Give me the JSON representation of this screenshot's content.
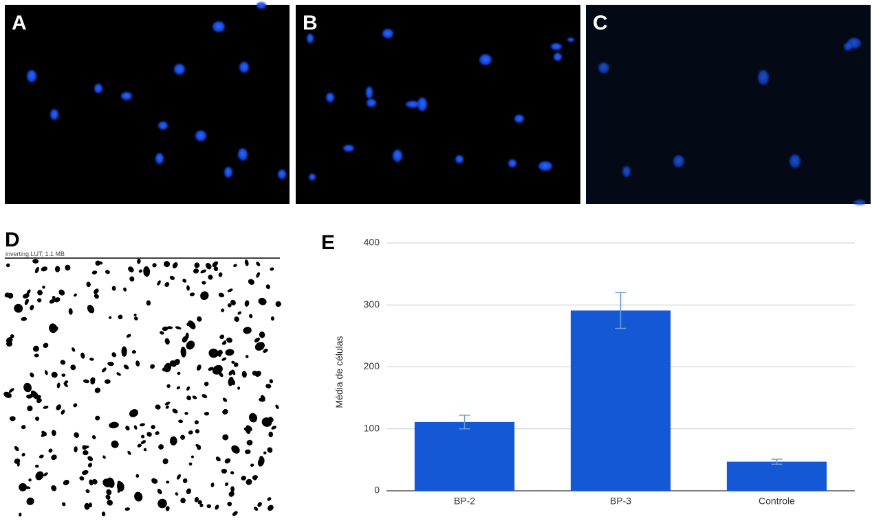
{
  "panels": [
    "A",
    "B",
    "C",
    "D",
    "E"
  ],
  "d_caption": "inverting LUT; 1.1 MB",
  "chart_data": {
    "type": "bar",
    "y_label": "Média de células",
    "categories": [
      "BP-2",
      "BP-3",
      "Controle"
    ],
    "values": [
      111,
      291,
      47
    ],
    "errors": [
      11,
      29,
      4
    ],
    "color": "#1558d6",
    "error_color": "#6a9be0",
    "ylim": [
      0,
      400
    ],
    "yticks": [
      0,
      100,
      200,
      300,
      400
    ],
    "grid": true
  }
}
